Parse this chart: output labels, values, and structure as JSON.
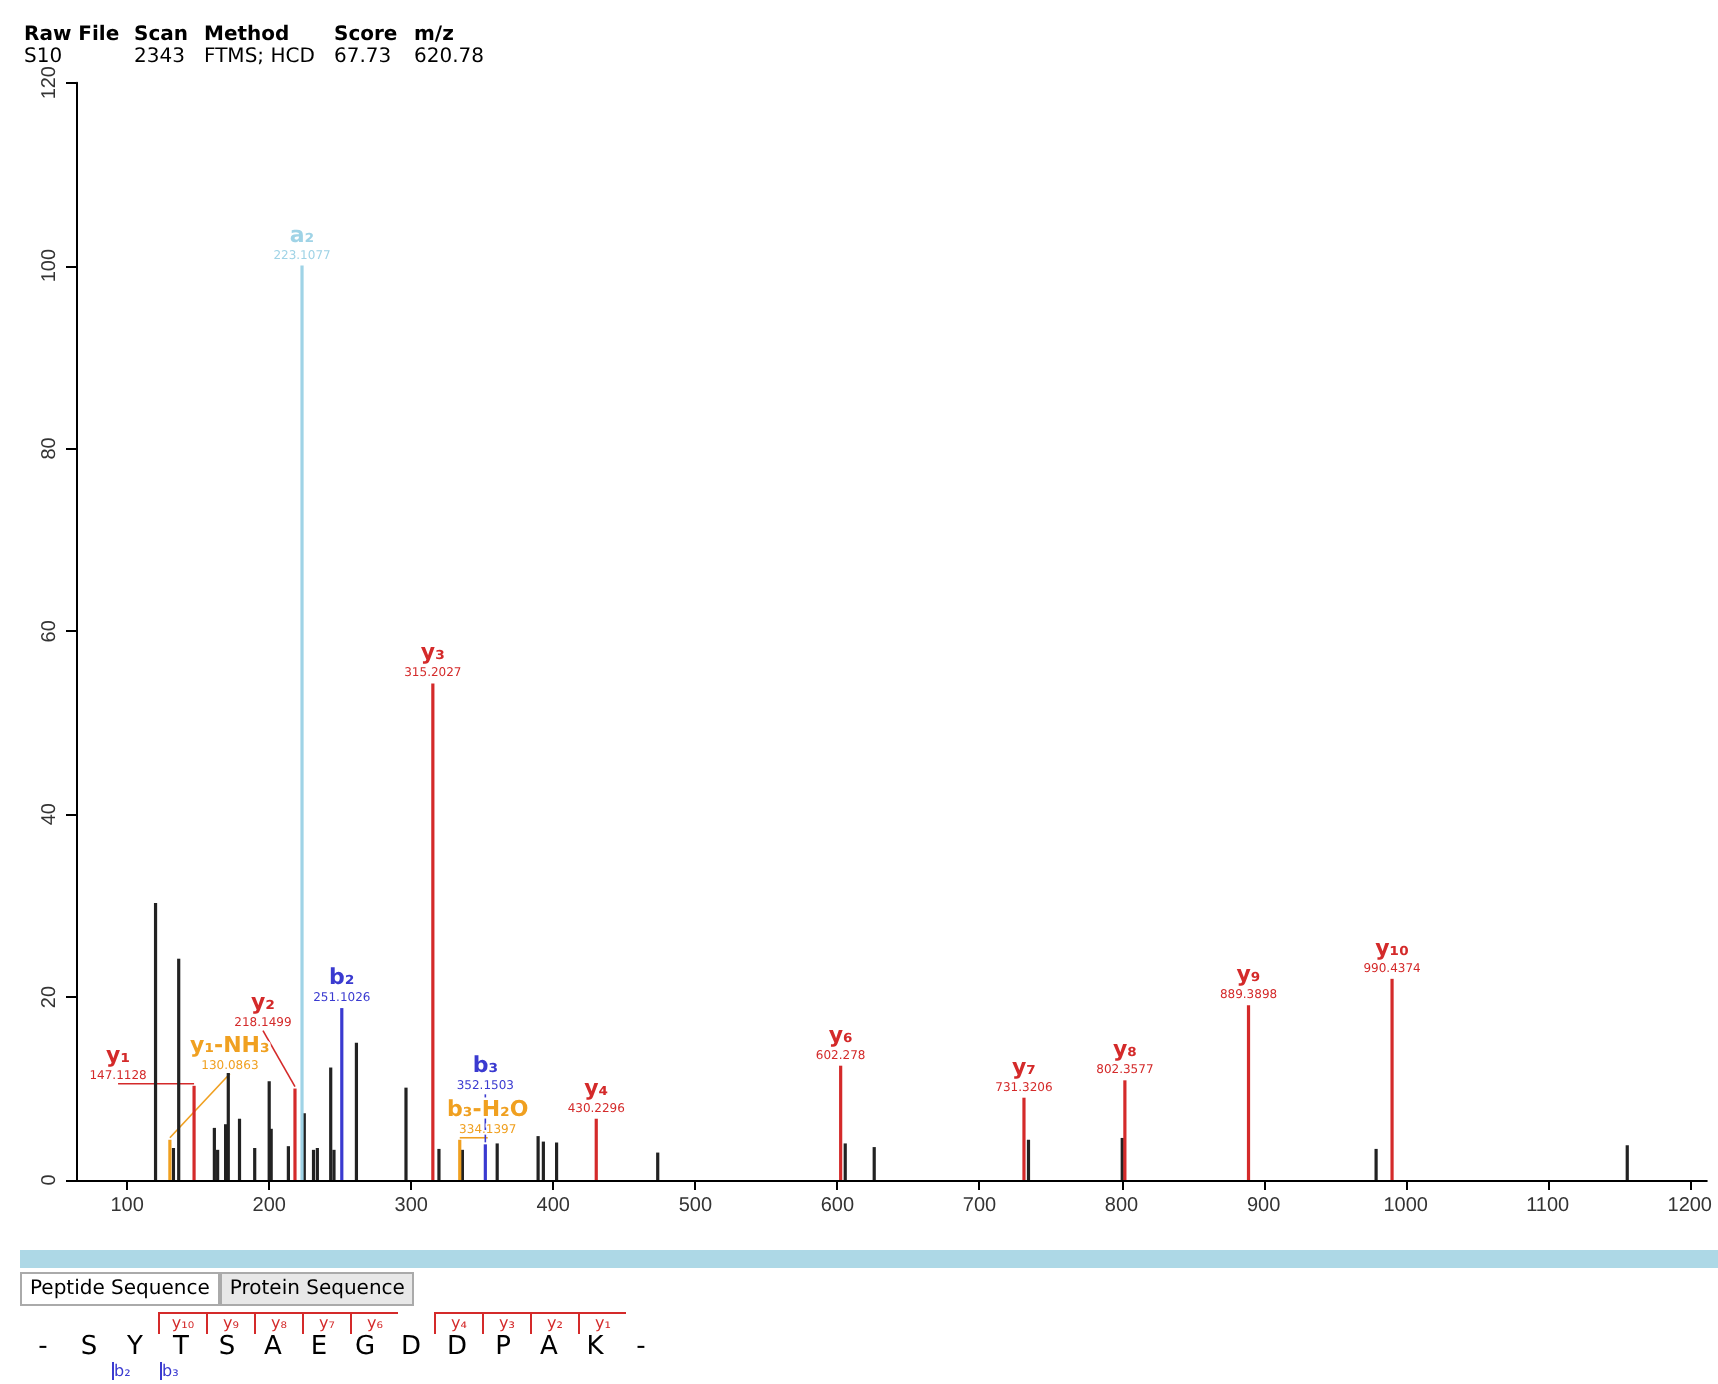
{
  "chart_data": {
    "type": "bar",
    "xlim": [
      64,
      1212
    ],
    "xticks": [
      100,
      200,
      300,
      400,
      500,
      600,
      700,
      800,
      900,
      1000,
      1100,
      1200
    ],
    "ylim": [
      0,
      120
    ],
    "yticks": [
      0,
      20,
      40,
      60,
      80,
      100,
      120
    ],
    "grid": false,
    "series": [
      {
        "color": "#222222",
        "x": [
          120.0,
          132.6,
          136.3,
          161.4,
          163.7,
          169.3,
          171.2,
          179.1,
          189.8,
          200.0,
          201.4,
          213.5,
          224.7,
          231.2,
          233.9,
          243.3,
          245.6,
          261.4,
          296.3,
          319.5,
          336.0,
          360.5,
          389.3,
          393.0,
          402.3,
          473.5,
          605.5,
          625.9,
          734.5,
          800.5,
          979.2,
          1156.0
        ],
        "values": [
          30.3,
          3.5,
          24.2,
          5.7,
          3.3,
          6.1,
          11.7,
          6.7,
          3.5,
          10.8,
          5.6,
          3.7,
          7.3,
          3.3,
          3.5,
          12.3,
          3.3,
          15.0,
          10.1,
          3.4,
          3.3,
          4.0,
          4.8,
          4.2,
          4.1,
          3.0,
          4.0,
          3.6,
          4.4,
          4.6,
          3.4,
          3.8
        ]
      },
      {
        "color": "#d42a2a",
        "x": [
          147.1128,
          218.1499,
          315.2027,
          430.2296,
          602.278,
          731.3206,
          802.3577,
          889.3898,
          990.4374
        ],
        "values": [
          10.3,
          10.0,
          54.3,
          6.7,
          12.5,
          9.0,
          10.9,
          19.1,
          22.0
        ]
      },
      {
        "color": "#3a3ad0",
        "x": [
          251.1026,
          352.1503
        ],
        "values": [
          18.8,
          3.9
        ]
      },
      {
        "color": "#9fd3e6",
        "x": [
          223.1077
        ],
        "values": [
          100
        ]
      },
      {
        "color": "#f0a020",
        "x": [
          130.0863,
          334.1397
        ],
        "values": [
          4.4,
          4.4
        ]
      }
    ],
    "annotations": [
      "Raw File",
      "Scan",
      "Method",
      "Score",
      "m/z",
      "S10",
      "2343",
      "FTMS; HCD",
      "67.73",
      "620.78",
      "Peptide Sequence",
      "Protein Sequence",
      "- S Y T S A E G D D P A K -",
      "y₁₀ y₉ y₈ y₇ y₆",
      "y₄ y₃ y₂ y₁",
      "b₂ b₃",
      {
        "text": "y₁",
        "x": 147.1128,
        "y": 10.3
      },
      {
        "text": "147.1128",
        "x": 147.1128,
        "y": 10.3
      },
      {
        "text": "y₂",
        "x": 218.1499,
        "y": 10.0
      },
      {
        "text": "218.1499",
        "x": 218.1499,
        "y": 10.0
      },
      {
        "text": "y₃",
        "x": 315.2027,
        "y": 54.3
      },
      {
        "text": "315.2027",
        "x": 315.2027,
        "y": 54.3
      },
      {
        "text": "y₄",
        "x": 430.2296,
        "y": 6.7
      },
      {
        "text": "430.2296",
        "x": 430.2296,
        "y": 6.7
      },
      {
        "text": "y₆",
        "x": 602.278,
        "y": 12.5
      },
      {
        "text": "602.278",
        "x": 602.278,
        "y": 12.5
      },
      {
        "text": "y₇",
        "x": 731.3206,
        "y": 9.0
      },
      {
        "text": "731.3206",
        "x": 731.3206,
        "y": 9.0
      },
      {
        "text": "y₈",
        "x": 802.3577,
        "y": 10.9
      },
      {
        "text": "802.3577",
        "x": 802.3577,
        "y": 10.9
      },
      {
        "text": "y₉",
        "x": 889.3898,
        "y": 19.1
      },
      {
        "text": "889.3898",
        "x": 889.3898,
        "y": 19.1
      },
      {
        "text": "y₁₀",
        "x": 990.4374,
        "y": 22.0
      },
      {
        "text": "990.4374",
        "x": 990.4374,
        "y": 22.0
      },
      {
        "text": "b₂",
        "x": 251.1026,
        "y": 18.8
      },
      {
        "text": "251.1026",
        "x": 251.1026,
        "y": 18.8
      },
      {
        "text": "b₃",
        "x": 352.1503,
        "y": 3.9
      },
      {
        "text": "352.1503",
        "x": 352.1503,
        "y": 3.9
      },
      {
        "text": "a₂",
        "x": 223.1077,
        "y": 100
      },
      {
        "text": "223.1077",
        "x": 223.1077,
        "y": 100
      },
      {
        "text": "y₁-NH₃",
        "x": 130.0863,
        "y": 4.4
      },
      {
        "text": "130.0863",
        "x": 130.0863,
        "y": 4.4
      },
      {
        "text": "b₃-H₂O",
        "x": 334.1397,
        "y": 4.4
      },
      {
        "text": "334.1397",
        "x": 334.1397,
        "y": 4.4
      }
    ]
  }
}
